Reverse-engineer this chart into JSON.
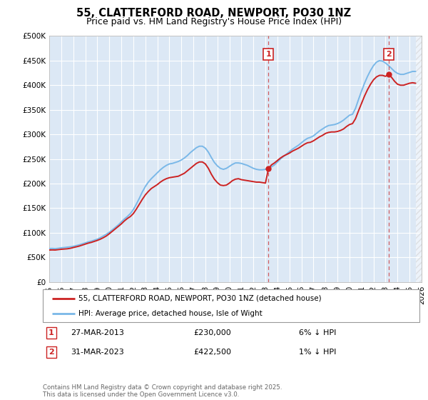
{
  "title": "55, CLATTERFORD ROAD, NEWPORT, PO30 1NZ",
  "subtitle": "Price paid vs. HM Land Registry's House Price Index (HPI)",
  "ylim": [
    0,
    500000
  ],
  "yticks": [
    0,
    50000,
    100000,
    150000,
    200000,
    250000,
    300000,
    350000,
    400000,
    450000,
    500000
  ],
  "ytick_labels": [
    "£0",
    "£50K",
    "£100K",
    "£150K",
    "£200K",
    "£250K",
    "£300K",
    "£350K",
    "£400K",
    "£450K",
    "£500K"
  ],
  "xlim_start": 1995.0,
  "xlim_end": 2026.0,
  "bg_color": "#dce8f5",
  "grid_color": "#ffffff",
  "hpi_color": "#7ab8e8",
  "property_color": "#cc2222",
  "vline_color": "#cc2222",
  "marker1_x": 2013.25,
  "marker2_x": 2023.25,
  "marker1_dot_y": 230000,
  "marker2_dot_y": 422500,
  "legend_label_property": "55, CLATTERFORD ROAD, NEWPORT, PO30 1NZ (detached house)",
  "legend_label_hpi": "HPI: Average price, detached house, Isle of Wight",
  "footer": "Contains HM Land Registry data © Crown copyright and database right 2025.\nThis data is licensed under the Open Government Licence v3.0.",
  "title_fontsize": 10.5,
  "subtitle_fontsize": 9,
  "tick_fontsize": 7.5,
  "hpi_data": [
    [
      1995.0,
      68000
    ],
    [
      1995.25,
      68200
    ],
    [
      1995.5,
      67800
    ],
    [
      1995.75,
      68500
    ],
    [
      1996.0,
      69500
    ],
    [
      1996.25,
      70000
    ],
    [
      1996.5,
      70800
    ],
    [
      1996.75,
      71500
    ],
    [
      1997.0,
      72500
    ],
    [
      1997.25,
      74000
    ],
    [
      1997.5,
      75500
    ],
    [
      1997.75,
      77500
    ],
    [
      1998.0,
      79500
    ],
    [
      1998.25,
      81500
    ],
    [
      1998.5,
      83000
    ],
    [
      1998.75,
      85000
    ],
    [
      1999.0,
      87000
    ],
    [
      1999.25,
      90000
    ],
    [
      1999.5,
      93500
    ],
    [
      1999.75,
      97000
    ],
    [
      2000.0,
      101000
    ],
    [
      2000.25,
      106000
    ],
    [
      2000.5,
      111000
    ],
    [
      2000.75,
      116000
    ],
    [
      2001.0,
      122000
    ],
    [
      2001.25,
      128000
    ],
    [
      2001.5,
      133000
    ],
    [
      2001.75,
      139000
    ],
    [
      2002.0,
      147000
    ],
    [
      2002.25,
      158000
    ],
    [
      2002.5,
      170000
    ],
    [
      2002.75,
      183000
    ],
    [
      2003.0,
      194000
    ],
    [
      2003.25,
      203000
    ],
    [
      2003.5,
      210000
    ],
    [
      2003.75,
      216000
    ],
    [
      2004.0,
      222000
    ],
    [
      2004.25,
      228000
    ],
    [
      2004.5,
      233000
    ],
    [
      2004.75,
      237000
    ],
    [
      2005.0,
      240000
    ],
    [
      2005.25,
      241000
    ],
    [
      2005.5,
      243000
    ],
    [
      2005.75,
      245000
    ],
    [
      2006.0,
      248000
    ],
    [
      2006.25,
      252000
    ],
    [
      2006.5,
      257000
    ],
    [
      2006.75,
      263000
    ],
    [
      2007.0,
      268000
    ],
    [
      2007.25,
      273000
    ],
    [
      2007.5,
      276000
    ],
    [
      2007.75,
      276000
    ],
    [
      2008.0,
      272000
    ],
    [
      2008.25,
      264000
    ],
    [
      2008.5,
      253000
    ],
    [
      2008.75,
      243000
    ],
    [
      2009.0,
      236000
    ],
    [
      2009.25,
      231000
    ],
    [
      2009.5,
      229000
    ],
    [
      2009.75,
      231000
    ],
    [
      2010.0,
      235000
    ],
    [
      2010.25,
      239000
    ],
    [
      2010.5,
      242000
    ],
    [
      2010.75,
      242000
    ],
    [
      2011.0,
      241000
    ],
    [
      2011.25,
      239000
    ],
    [
      2011.5,
      237000
    ],
    [
      2011.75,
      234000
    ],
    [
      2012.0,
      231000
    ],
    [
      2012.25,
      229000
    ],
    [
      2012.5,
      228000
    ],
    [
      2012.75,
      228000
    ],
    [
      2013.0,
      229000
    ],
    [
      2013.25,
      231000
    ],
    [
      2013.5,
      234000
    ],
    [
      2013.75,
      238000
    ],
    [
      2014.0,
      244000
    ],
    [
      2014.25,
      250000
    ],
    [
      2014.5,
      255000
    ],
    [
      2014.75,
      260000
    ],
    [
      2015.0,
      265000
    ],
    [
      2015.25,
      270000
    ],
    [
      2015.5,
      274000
    ],
    [
      2015.75,
      278000
    ],
    [
      2016.0,
      283000
    ],
    [
      2016.25,
      288000
    ],
    [
      2016.5,
      292000
    ],
    [
      2016.75,
      294000
    ],
    [
      2017.0,
      297000
    ],
    [
      2017.25,
      302000
    ],
    [
      2017.5,
      307000
    ],
    [
      2017.75,
      311000
    ],
    [
      2018.0,
      315000
    ],
    [
      2018.25,
      318000
    ],
    [
      2018.5,
      319000
    ],
    [
      2018.75,
      320000
    ],
    [
      2019.0,
      322000
    ],
    [
      2019.25,
      325000
    ],
    [
      2019.5,
      329000
    ],
    [
      2019.75,
      334000
    ],
    [
      2020.0,
      339000
    ],
    [
      2020.25,
      341000
    ],
    [
      2020.5,
      353000
    ],
    [
      2020.75,
      371000
    ],
    [
      2021.0,
      388000
    ],
    [
      2021.25,
      404000
    ],
    [
      2021.5,
      418000
    ],
    [
      2021.75,
      430000
    ],
    [
      2022.0,
      440000
    ],
    [
      2022.25,
      447000
    ],
    [
      2022.5,
      450000
    ],
    [
      2022.75,
      449000
    ],
    [
      2023.0,
      445000
    ],
    [
      2023.25,
      440000
    ],
    [
      2023.5,
      434000
    ],
    [
      2023.75,
      428000
    ],
    [
      2024.0,
      424000
    ],
    [
      2024.25,
      422000
    ],
    [
      2024.5,
      422000
    ],
    [
      2024.75,
      424000
    ],
    [
      2025.0,
      426000
    ],
    [
      2025.25,
      428000
    ],
    [
      2025.5,
      428000
    ]
  ],
  "property_data": [
    [
      1995.0,
      65000
    ],
    [
      1995.25,
      65200
    ],
    [
      1995.5,
      65000
    ],
    [
      1995.75,
      65800
    ],
    [
      1996.0,
      66500
    ],
    [
      1996.25,
      67000
    ],
    [
      1996.5,
      67500
    ],
    [
      1996.75,
      68500
    ],
    [
      1997.0,
      70000
    ],
    [
      1997.25,
      71500
    ],
    [
      1997.5,
      73000
    ],
    [
      1997.75,
      75000
    ],
    [
      1998.0,
      77000
    ],
    [
      1998.25,
      79000
    ],
    [
      1998.5,
      80500
    ],
    [
      1998.75,
      82500
    ],
    [
      1999.0,
      84500
    ],
    [
      1999.25,
      87000
    ],
    [
      1999.5,
      90000
    ],
    [
      1999.75,
      93500
    ],
    [
      2000.0,
      98000
    ],
    [
      2000.25,
      103000
    ],
    [
      2000.5,
      108000
    ],
    [
      2000.75,
      113000
    ],
    [
      2001.0,
      118000
    ],
    [
      2001.25,
      124000
    ],
    [
      2001.5,
      129000
    ],
    [
      2001.75,
      133000
    ],
    [
      2002.0,
      139000
    ],
    [
      2002.25,
      148000
    ],
    [
      2002.5,
      158000
    ],
    [
      2002.75,
      168000
    ],
    [
      2003.0,
      177000
    ],
    [
      2003.25,
      184000
    ],
    [
      2003.5,
      190000
    ],
    [
      2003.75,
      194000
    ],
    [
      2004.0,
      198000
    ],
    [
      2004.25,
      203000
    ],
    [
      2004.5,
      207000
    ],
    [
      2004.75,
      210000
    ],
    [
      2005.0,
      212000
    ],
    [
      2005.25,
      213000
    ],
    [
      2005.5,
      214000
    ],
    [
      2005.75,
      215000
    ],
    [
      2006.0,
      218000
    ],
    [
      2006.25,
      221000
    ],
    [
      2006.5,
      226000
    ],
    [
      2006.75,
      231000
    ],
    [
      2007.0,
      236000
    ],
    [
      2007.25,
      241000
    ],
    [
      2007.5,
      244000
    ],
    [
      2007.75,
      244000
    ],
    [
      2008.0,
      240000
    ],
    [
      2008.25,
      231000
    ],
    [
      2008.5,
      219000
    ],
    [
      2008.75,
      209000
    ],
    [
      2009.0,
      202000
    ],
    [
      2009.25,
      197000
    ],
    [
      2009.5,
      196000
    ],
    [
      2009.75,
      197000
    ],
    [
      2010.0,
      201000
    ],
    [
      2010.25,
      206000
    ],
    [
      2010.5,
      209000
    ],
    [
      2010.75,
      210000
    ],
    [
      2011.0,
      208000
    ],
    [
      2011.25,
      207000
    ],
    [
      2011.5,
      206000
    ],
    [
      2011.75,
      205000
    ],
    [
      2012.0,
      204000
    ],
    [
      2012.25,
      203000
    ],
    [
      2012.5,
      203000
    ],
    [
      2012.75,
      202000
    ],
    [
      2013.0,
      201000
    ],
    [
      2013.25,
      230000
    ],
    [
      2013.5,
      238000
    ],
    [
      2013.75,
      242000
    ],
    [
      2014.0,
      247000
    ],
    [
      2014.25,
      252000
    ],
    [
      2014.5,
      256000
    ],
    [
      2014.75,
      259000
    ],
    [
      2015.0,
      262000
    ],
    [
      2015.25,
      266000
    ],
    [
      2015.5,
      269000
    ],
    [
      2015.75,
      272000
    ],
    [
      2016.0,
      276000
    ],
    [
      2016.25,
      280000
    ],
    [
      2016.5,
      283000
    ],
    [
      2016.75,
      284000
    ],
    [
      2017.0,
      287000
    ],
    [
      2017.25,
      291000
    ],
    [
      2017.5,
      295000
    ],
    [
      2017.75,
      298000
    ],
    [
      2018.0,
      302000
    ],
    [
      2018.25,
      304000
    ],
    [
      2018.5,
      305000
    ],
    [
      2018.75,
      305000
    ],
    [
      2019.0,
      306000
    ],
    [
      2019.25,
      308000
    ],
    [
      2019.5,
      311000
    ],
    [
      2019.75,
      316000
    ],
    [
      2020.0,
      320000
    ],
    [
      2020.25,
      322000
    ],
    [
      2020.5,
      332000
    ],
    [
      2020.75,
      348000
    ],
    [
      2021.0,
      363000
    ],
    [
      2021.25,
      378000
    ],
    [
      2021.5,
      391000
    ],
    [
      2021.75,
      402000
    ],
    [
      2022.0,
      411000
    ],
    [
      2022.25,
      417000
    ],
    [
      2022.5,
      420000
    ],
    [
      2022.75,
      420000
    ],
    [
      2023.0,
      418000
    ],
    [
      2023.25,
      422500
    ],
    [
      2023.5,
      416000
    ],
    [
      2023.75,
      408000
    ],
    [
      2024.0,
      402000
    ],
    [
      2024.25,
      400000
    ],
    [
      2024.5,
      400000
    ],
    [
      2024.75,
      402000
    ],
    [
      2025.0,
      404000
    ],
    [
      2025.25,
      405000
    ],
    [
      2025.5,
      404000
    ]
  ]
}
